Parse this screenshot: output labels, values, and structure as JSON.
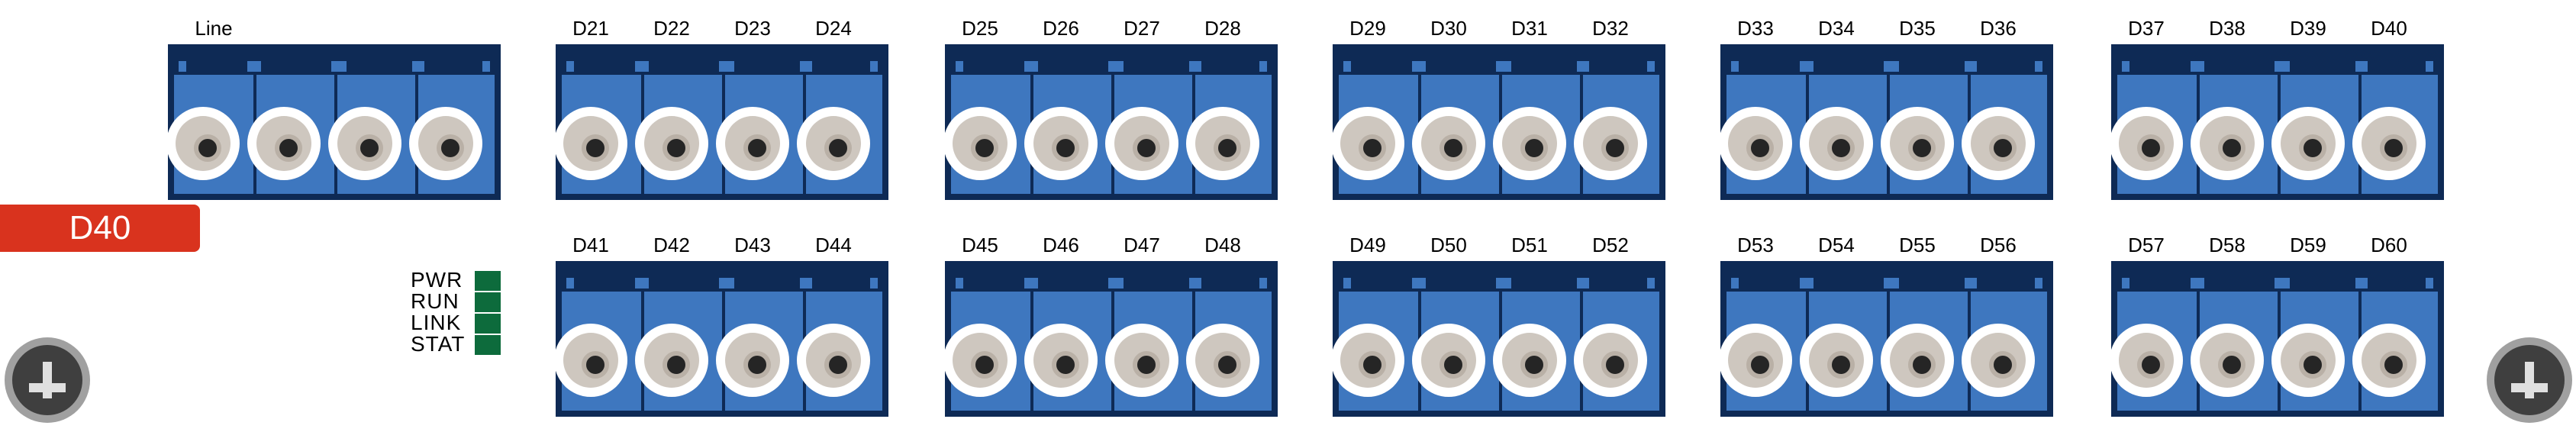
{
  "device": {
    "badge_label": "D40",
    "led_color": "#0d6b3c",
    "module_colors": {
      "frame": "#0e2a55",
      "body": "#3e77bf"
    },
    "badge_color": "#d9331e",
    "leds": [
      {
        "label": "PWR"
      },
      {
        "label": "RUN"
      },
      {
        "label": "LINK"
      },
      {
        "label": "STAT"
      }
    ],
    "modules": [
      {
        "name": "line",
        "top_labels": [
          "Line"
        ],
        "ports": [
          "port",
          "port",
          "port",
          "port"
        ]
      },
      {
        "name": "d21-d24",
        "top_labels": [
          "D21",
          "D22",
          "D23",
          "D24"
        ],
        "ports": [
          "D21",
          "D22",
          "D23",
          "D24"
        ]
      },
      {
        "name": "d25-d28",
        "top_labels": [
          "D25",
          "D26",
          "D27",
          "D28"
        ],
        "ports": [
          "D25",
          "D26",
          "D27",
          "D28"
        ]
      },
      {
        "name": "d29-d32",
        "top_labels": [
          "D29",
          "D30",
          "D31",
          "D32"
        ],
        "ports": [
          "D29",
          "D30",
          "D31",
          "D32"
        ]
      },
      {
        "name": "d33-d36",
        "top_labels": [
          "D33",
          "D34",
          "D35",
          "D36"
        ],
        "ports": [
          "D33",
          "D34",
          "D35",
          "D36"
        ]
      },
      {
        "name": "d37-d40",
        "top_labels": [
          "D37",
          "D38",
          "D39",
          "D40"
        ],
        "ports": [
          "D37",
          "D38",
          "D39",
          "D40"
        ]
      },
      {
        "name": "d41-d44",
        "top_labels": [
          "D41",
          "D42",
          "D43",
          "D44"
        ],
        "ports": [
          "D41",
          "D42",
          "D43",
          "D44"
        ]
      },
      {
        "name": "d45-d48",
        "top_labels": [
          "D45",
          "D46",
          "D47",
          "D48"
        ],
        "ports": [
          "D45",
          "D46",
          "D47",
          "D48"
        ]
      },
      {
        "name": "d49-d52",
        "top_labels": [
          "D49",
          "D50",
          "D51",
          "D52"
        ],
        "ports": [
          "D49",
          "D50",
          "D51",
          "D52"
        ]
      },
      {
        "name": "d53-d56",
        "top_labels": [
          "D53",
          "D54",
          "D55",
          "D56"
        ],
        "ports": [
          "D53",
          "D54",
          "D55",
          "D56"
        ]
      },
      {
        "name": "d57-d60",
        "top_labels": [
          "D57",
          "D58",
          "D59",
          "D60"
        ],
        "ports": [
          "D57",
          "D58",
          "D59",
          "D60"
        ]
      }
    ],
    "screws": [
      "left",
      "right"
    ]
  }
}
